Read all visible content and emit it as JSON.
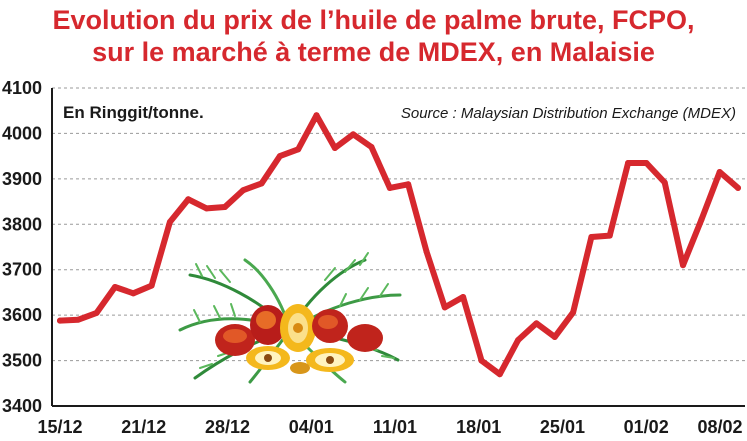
{
  "chart_data": {
    "type": "line",
    "title_line1": "Evolution du prix de l’huile de palme brute, FCPO,",
    "title_line2": "sur le marché à terme de MDEX, en Malaisie",
    "unit_label": "En Ringgit/tonne.",
    "source": "Source : Malaysian Distribution Exchange (MDEX)",
    "ylim": [
      3400,
      4100
    ],
    "yticks": [
      "4100",
      "4000",
      "3900",
      "3800",
      "3700",
      "3600",
      "3500",
      "3400"
    ],
    "ytick_values": [
      4100,
      4000,
      3900,
      3800,
      3700,
      3600,
      3500,
      3400
    ],
    "xtick_labels": [
      "15/12",
      "21/12",
      "28/12",
      "04/01",
      "11/01",
      "18/01",
      "25/01",
      "01/02",
      "08/02"
    ],
    "grid": "horizontal-dashed",
    "series": [
      {
        "values": [
          3588,
          3590,
          3605,
          3662,
          3648,
          3665,
          3805,
          3855,
          3835,
          3838,
          3875,
          3890,
          3950,
          3965,
          4040,
          3968,
          3998,
          3970,
          3880,
          3888,
          3740,
          3617,
          3640,
          3500,
          3470,
          3545,
          3582,
          3552,
          3606,
          3772,
          3775,
          3935,
          3935,
          3892,
          3710,
          3810,
          3915,
          3880
        ]
      }
    ],
    "colors": {
      "line": "#d6282e",
      "title": "#d6282e",
      "grid": "#9a9a9a",
      "axis": "#1a1a1a"
    }
  }
}
